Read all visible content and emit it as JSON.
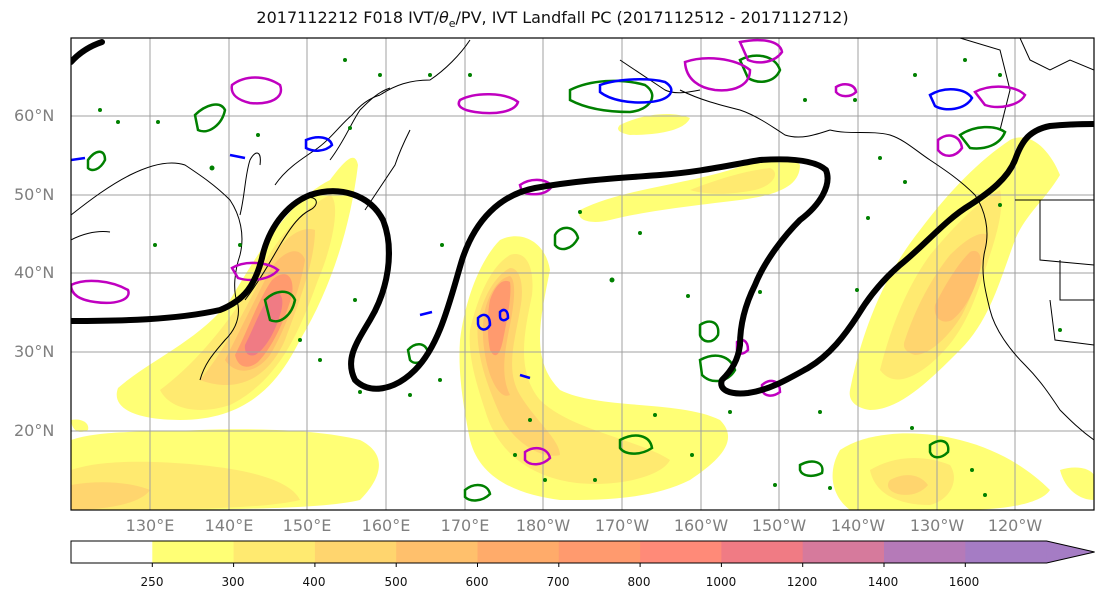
{
  "title": {
    "prefix": "2017112212 F018 IVT/",
    "theta": "θ",
    "theta_sub": "e",
    "suffix": "/PV, IVT Landfall PC (2017112512 - 2017112712)"
  },
  "lat_labels": [
    "60°N",
    "50°N",
    "40°N",
    "30°N",
    "20°N"
  ],
  "lon_labels": [
    "130°E",
    "140°E",
    "150°E",
    "160°E",
    "170°E",
    "180°W",
    "170°W",
    "160°W",
    "150°W",
    "140°W",
    "130°W",
    "120°W"
  ],
  "colorbar": {
    "ticks": [
      "250",
      "300",
      "400",
      "500",
      "600",
      "700",
      "800",
      "1000",
      "1200",
      "1400",
      "1600"
    ],
    "colors": [
      "#ffffff",
      "#ffff75",
      "#ffea70",
      "#ffd56e",
      "#ffc06c",
      "#ffab6a",
      "#ff9a6e",
      "#ff8a78",
      "#f07b84",
      "#d67a9c",
      "#b57ab8",
      "#a57cc4"
    ]
  },
  "colors": {
    "ivt_contour": "#000000",
    "theta_e": "#008000",
    "pv_magenta": "#c000c0",
    "pv_blue": "#0000ff",
    "grid": "#a0a0a0",
    "coast": "#000000"
  }
}
